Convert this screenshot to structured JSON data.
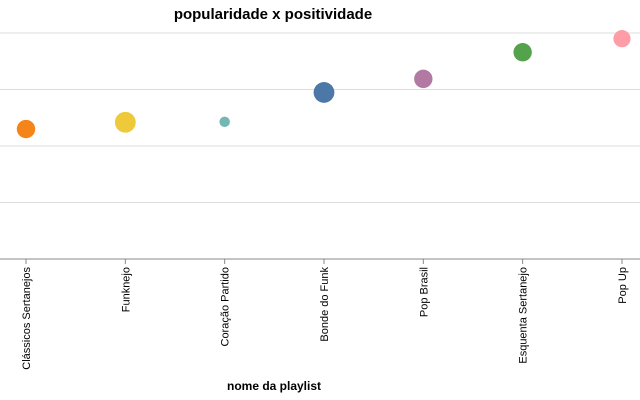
{
  "chart_data": {
    "type": "scatter",
    "title": "popularidade x positividade",
    "xlabel": "nome da playlist",
    "ylabel": "",
    "categories": [
      "Clássicos Sertanejos",
      "Funknejo",
      "Coração Partido",
      "Bonde do Funk",
      "Pop Brasil",
      "Esquenta Sertanejo",
      "Pop Up"
    ],
    "ylim": [
      0,
      1
    ],
    "grid": true,
    "points": [
      {
        "category": "Clássicos Sertanejos",
        "y": 0.575,
        "size": 0.62,
        "color": "#f58518"
      },
      {
        "category": "Funknejo",
        "y": 0.605,
        "size": 0.74,
        "color": "#eeca3b"
      },
      {
        "category": "Coração Partido",
        "y": 0.607,
        "size": 0.22,
        "color": "#72b7b2"
      },
      {
        "category": "Bonde do Funk",
        "y": 0.737,
        "size": 0.74,
        "color": "#4c78a8"
      },
      {
        "category": "Pop Brasil",
        "y": 0.797,
        "size": 0.62,
        "color": "#b279a2"
      },
      {
        "category": "Esquenta Sertanejo",
        "y": 0.915,
        "size": 0.62,
        "color": "#54a24b"
      },
      {
        "category": "Pop Up",
        "y": 0.975,
        "size": 0.56,
        "color": "#ff9da6"
      }
    ]
  }
}
